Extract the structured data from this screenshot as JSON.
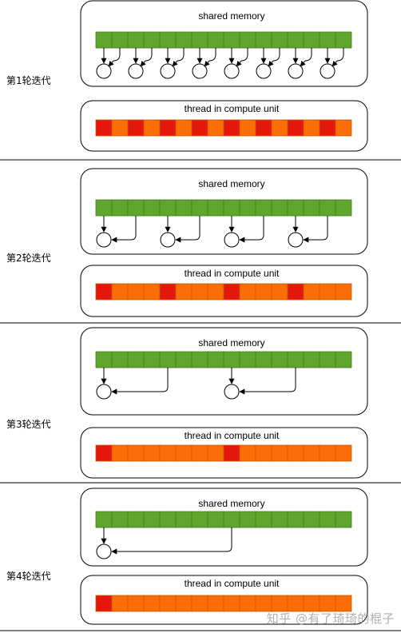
{
  "colors": {
    "green": "#5fa52e",
    "green_stroke": "#3f7f1a",
    "orange": "#fb6d06",
    "red": "#e5170c",
    "cell_stroke": "#c35a00",
    "panel_stroke": "#000000",
    "separator": "#000000"
  },
  "cells_per_row": 16,
  "watermark": "知乎 @有了琦琦的棍子",
  "rounds": [
    {
      "label": "第1轮迭代",
      "memory_title": "shared memory",
      "thread_title": "thread in compute unit",
      "stride": 1,
      "active_threads": [
        0,
        2,
        4,
        6,
        8,
        10,
        12,
        14
      ]
    },
    {
      "label": "第2轮迭代",
      "memory_title": "shared memory",
      "thread_title": "thread in compute unit",
      "stride": 2,
      "active_threads": [
        0,
        4,
        8,
        12
      ]
    },
    {
      "label": "第3轮迭代",
      "memory_title": "shared memory",
      "thread_title": "thread in compute unit",
      "stride": 4,
      "active_threads": [
        0,
        8
      ]
    },
    {
      "label": "第4轮迭代",
      "memory_title": "shared memory",
      "thread_title": "thread in compute unit",
      "stride": 8,
      "active_threads": [
        0
      ]
    }
  ]
}
